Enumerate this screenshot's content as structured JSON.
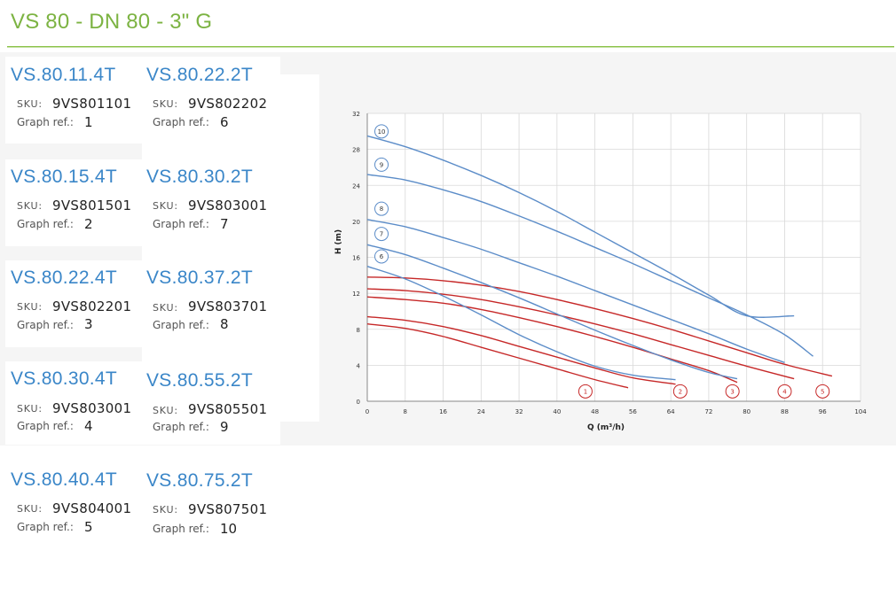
{
  "page": {
    "title": "VS 80 - DN 80 - 3\" G"
  },
  "labels": {
    "sku": "SKU:",
    "graph_ref": "Graph ref.:"
  },
  "models": [
    {
      "name": "VS.80.11.4T",
      "sku": "9VS801101",
      "ref": "1"
    },
    {
      "name": "VS.80.15.4T",
      "sku": "9VS801501",
      "ref": "2"
    },
    {
      "name": "VS.80.22.4T",
      "sku": "9VS802201",
      "ref": "3"
    },
    {
      "name": "VS.80.30.4T",
      "sku": "9VS803001",
      "ref": "4"
    },
    {
      "name": "VS.80.40.4T",
      "sku": "9VS804001",
      "ref": "5"
    },
    {
      "name": "VS.80.22.2T",
      "sku": "9VS802202",
      "ref": "6"
    },
    {
      "name": "VS.80.30.2T",
      "sku": "9VS803001",
      "ref": "7"
    },
    {
      "name": "VS.80.37.2T",
      "sku": "9VS803701",
      "ref": "8"
    },
    {
      "name": "VS.80.55.2T",
      "sku": "9VS805501",
      "ref": "9"
    },
    {
      "name": "VS.80.75.2T",
      "sku": "9VS807501",
      "ref": "10"
    }
  ],
  "colors": {
    "title": "#7cb342",
    "model": "#3a86c8",
    "red_series": "#c62828",
    "blue_series": "#5b8cc8",
    "grid": "#d9d9d9"
  },
  "chart_data": {
    "type": "line",
    "title": "",
    "xlabel": "Q (m³/h)",
    "ylabel": "H (m)",
    "xlim": [
      0,
      104
    ],
    "ylim": [
      0,
      32
    ],
    "xticks": [
      0,
      8,
      16,
      24,
      32,
      40,
      48,
      56,
      64,
      72,
      80,
      88,
      96,
      104
    ],
    "yticks": [
      0,
      4,
      8,
      12,
      16,
      20,
      24,
      28,
      32
    ],
    "grid": true,
    "series": [
      {
        "name": "1",
        "color": "red",
        "x": [
          0,
          8,
          16,
          24,
          32,
          40,
          48,
          55
        ],
        "y": [
          8.6,
          8.1,
          7.2,
          6.0,
          4.8,
          3.6,
          2.4,
          1.5
        ],
        "label_at": [
          46,
          1.1
        ]
      },
      {
        "name": "2",
        "color": "red",
        "x": [
          0,
          8,
          16,
          24,
          32,
          40,
          48,
          56,
          65
        ],
        "y": [
          9.4,
          9.0,
          8.3,
          7.3,
          6.1,
          4.9,
          3.7,
          2.6,
          1.9
        ],
        "label_at": [
          66,
          1.1
        ]
      },
      {
        "name": "3",
        "color": "red",
        "x": [
          0,
          8,
          16,
          24,
          32,
          40,
          48,
          56,
          64,
          72,
          78
        ],
        "y": [
          11.6,
          11.3,
          10.9,
          10.2,
          9.3,
          8.3,
          7.2,
          6.0,
          4.7,
          3.4,
          2.1
        ],
        "label_at": [
          77,
          1.1
        ]
      },
      {
        "name": "4",
        "color": "red",
        "x": [
          0,
          8,
          16,
          24,
          32,
          40,
          48,
          56,
          64,
          72,
          80,
          90
        ],
        "y": [
          12.5,
          12.3,
          11.9,
          11.3,
          10.5,
          9.6,
          8.6,
          7.5,
          6.3,
          5.1,
          3.9,
          2.5
        ],
        "label_at": [
          88,
          1.1
        ]
      },
      {
        "name": "5",
        "color": "red",
        "x": [
          0,
          8,
          16,
          24,
          32,
          40,
          48,
          56,
          64,
          72,
          80,
          88,
          98
        ],
        "y": [
          13.8,
          13.7,
          13.4,
          12.9,
          12.2,
          11.3,
          10.3,
          9.2,
          8.0,
          6.7,
          5.4,
          4.1,
          2.8
        ],
        "label_at": [
          96,
          1.1
        ]
      },
      {
        "name": "6",
        "color": "blue",
        "x": [
          0,
          8,
          16,
          24,
          32,
          40,
          48,
          56,
          65
        ],
        "y": [
          15.0,
          13.6,
          11.7,
          9.6,
          7.4,
          5.5,
          3.9,
          2.9,
          2.4
        ],
        "label_at": [
          3,
          16.1
        ]
      },
      {
        "name": "7",
        "color": "blue",
        "x": [
          0,
          8,
          16,
          24,
          32,
          40,
          48,
          56,
          64,
          72,
          78
        ],
        "y": [
          17.4,
          16.3,
          14.8,
          13.2,
          11.5,
          9.7,
          7.9,
          6.2,
          4.6,
          3.2,
          2.5
        ],
        "label_at": [
          3,
          18.6
        ]
      },
      {
        "name": "8",
        "color": "blue",
        "x": [
          0,
          8,
          16,
          24,
          32,
          40,
          48,
          56,
          64,
          72,
          80,
          88
        ],
        "y": [
          20.2,
          19.4,
          18.2,
          16.9,
          15.4,
          13.9,
          12.3,
          10.7,
          9.1,
          7.5,
          5.8,
          4.3
        ],
        "label_at": [
          3,
          21.4
        ]
      },
      {
        "name": "9",
        "color": "blue",
        "x": [
          0,
          8,
          16,
          24,
          32,
          40,
          48,
          56,
          64,
          72,
          80,
          88,
          94
        ],
        "y": [
          25.2,
          24.6,
          23.5,
          22.2,
          20.6,
          18.9,
          17.1,
          15.3,
          13.4,
          11.5,
          9.6,
          7.4,
          5.0
        ],
        "label_at": [
          3,
          26.3
        ]
      },
      {
        "name": "10",
        "color": "blue",
        "x": [
          0,
          8,
          16,
          24,
          32,
          40,
          48,
          56,
          64,
          72,
          80,
          90
        ],
        "y": [
          29.5,
          28.3,
          26.8,
          25.1,
          23.2,
          21.1,
          18.8,
          16.5,
          14.2,
          11.8,
          9.5,
          9.5
        ],
        "label_at": [
          3,
          30.0
        ]
      }
    ]
  }
}
